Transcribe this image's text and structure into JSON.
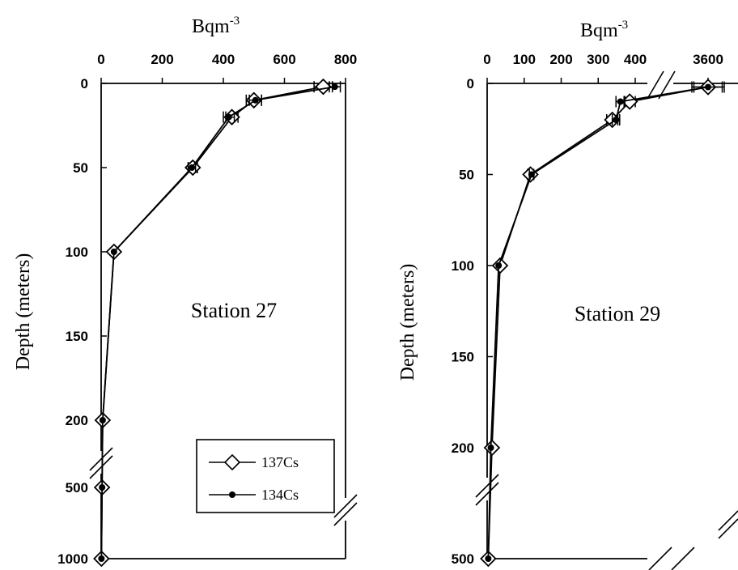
{
  "chart_data": [
    {
      "type": "line",
      "panel_label": "Station 27",
      "x_unit_label": "Bqm",
      "x_unit_superscript": "-3",
      "ylabel": "Depth (meters)",
      "x_ticks": [
        "0",
        "200",
        "400",
        "600",
        "800"
      ],
      "xlim": [
        0,
        800
      ],
      "y_ticks": [
        "0",
        "50",
        "100",
        "150",
        "200",
        "500",
        "1000"
      ],
      "y_axis_break": "between 200 and 500",
      "y_reversed": true,
      "series": [
        {
          "name": "137Cs",
          "marker": "open-diamond",
          "points": [
            {
              "depth": 2,
              "value": 727,
              "err": 30
            },
            {
              "depth": 10,
              "value": 500,
              "err": 25
            },
            {
              "depth": 20,
              "value": 428,
              "err": 20
            },
            {
              "depth": 50,
              "value": 300,
              "err": 15
            },
            {
              "depth": 100,
              "value": 42,
              "err": 5
            },
            {
              "depth": 200,
              "value": 5,
              "err": 0
            },
            {
              "depth": 500,
              "value": 3,
              "err": 0
            },
            {
              "depth": 1000,
              "value": 1,
              "err": 0
            }
          ]
        },
        {
          "name": "134Cs",
          "marker": "filled-dot",
          "points": [
            {
              "depth": 2,
              "value": 765,
              "err": 18
            },
            {
              "depth": 10,
              "value": 505,
              "err": 20
            },
            {
              "depth": 20,
              "value": 418,
              "err": 18
            },
            {
              "depth": 50,
              "value": 297,
              "err": 12
            },
            {
              "depth": 100,
              "value": 42,
              "err": 4
            },
            {
              "depth": 200,
              "value": 5,
              "err": 0
            },
            {
              "depth": 500,
              "value": 3,
              "err": 0
            },
            {
              "depth": 1000,
              "value": 1,
              "err": 0
            }
          ]
        }
      ],
      "legend_placement": "bottom-right"
    },
    {
      "type": "line",
      "panel_label": "Station 29",
      "x_unit_label": "Bqm",
      "x_unit_superscript": "-3",
      "ylabel": "Depth (meters)",
      "x_ticks": [
        "0",
        "100",
        "200",
        "300",
        "400",
        "3600"
      ],
      "xlim": [
        0,
        3700
      ],
      "x_axis_break": "between 400 and 3600",
      "y_ticks": [
        "0",
        "50",
        "100",
        "150",
        "200",
        "500"
      ],
      "y_axis_break": "between 200 and 500",
      "y_reversed": true,
      "series": [
        {
          "name": "137Cs",
          "marker": "open-diamond",
          "points": [
            {
              "depth": 2,
              "value": 3600,
              "err": 80
            },
            {
              "depth": 10,
              "value": 385,
              "err": 20
            },
            {
              "depth": 20,
              "value": 338,
              "err": 15
            },
            {
              "depth": 50,
              "value": 117,
              "err": 8
            },
            {
              "depth": 100,
              "value": 35,
              "err": 4
            },
            {
              "depth": 200,
              "value": 13,
              "err": 0
            },
            {
              "depth": 500,
              "value": 3,
              "err": 0
            }
          ]
        },
        {
          "name": "134Cs",
          "marker": "filled-dot",
          "points": [
            {
              "depth": 2,
              "value": 3600,
              "err": 70
            },
            {
              "depth": 10,
              "value": 360,
              "err": 12
            },
            {
              "depth": 20,
              "value": 348,
              "err": 10
            },
            {
              "depth": 50,
              "value": 120,
              "err": 6
            },
            {
              "depth": 100,
              "value": 31,
              "err": 3
            },
            {
              "depth": 200,
              "value": 10,
              "err": 0
            },
            {
              "depth": 500,
              "value": 3,
              "err": 0
            }
          ]
        }
      ]
    }
  ],
  "legend": {
    "entries": [
      {
        "label": "137Cs",
        "marker": "open-diamond"
      },
      {
        "label": "134Cs",
        "marker": "filled-dot"
      }
    ]
  }
}
